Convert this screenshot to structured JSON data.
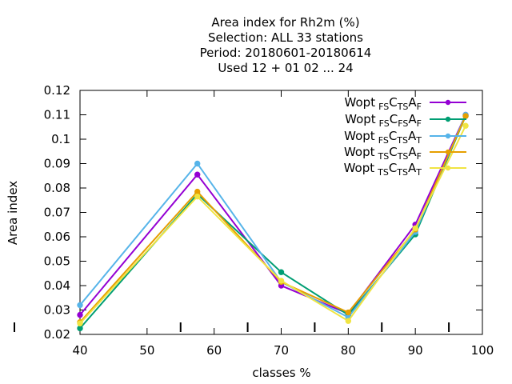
{
  "chart_data": {
    "type": "line",
    "title_lines": [
      "Area index  for Rh2m (%)",
      "Selection: ALL     33 stations",
      "Period: 20180601-20180614",
      "Used  12 + 01 02 ... 24"
    ],
    "xlabel": "classes %",
    "ylabel": "Area index",
    "xlim": [
      40,
      100
    ],
    "ylim": [
      0.02,
      0.12
    ],
    "xticks": [
      40,
      50,
      60,
      70,
      80,
      90,
      100
    ],
    "yticks": [
      0.02,
      0.03,
      0.04,
      0.05,
      0.06,
      0.07,
      0.08,
      0.09,
      0.1,
      0.11,
      0.12
    ],
    "xtick_labels": [
      "40",
      "50",
      "60",
      "70",
      "80",
      "90",
      "100"
    ],
    "ytick_labels": [
      "0.02",
      "0.03",
      "0.04",
      "0.05",
      "0.06",
      "0.07",
      "0.08",
      "0.09",
      "0.1",
      "0.11",
      "0.12"
    ],
    "grid": false,
    "legend_position": "top-right",
    "x": [
      40,
      57.5,
      70,
      80,
      90,
      97.5
    ],
    "series": [
      {
        "name": "Wopt",
        "sub1": "FS",
        "mid": "C",
        "sub2": "TS",
        "end": "A",
        "sub3": "F",
        "color": "#9400d3",
        "values": [
          0.028,
          0.0855,
          0.04,
          0.0285,
          0.065,
          0.11
        ]
      },
      {
        "name": "Wopt",
        "sub1": "FS",
        "mid": "C",
        "sub2": "FS",
        "end": "A",
        "sub3": "F",
        "color": "#009e73",
        "values": [
          0.0225,
          0.0775,
          0.0455,
          0.028,
          0.061,
          0.1095
        ]
      },
      {
        "name": "Wopt",
        "sub1": "FS",
        "mid": "C",
        "sub2": "TS",
        "end": "A",
        "sub3": "T",
        "color": "#56b4e9",
        "values": [
          0.032,
          0.09,
          0.0415,
          0.027,
          0.062,
          0.11
        ]
      },
      {
        "name": "Wopt",
        "sub1": "TS",
        "mid": "C",
        "sub2": "TS",
        "end": "A",
        "sub3": "F",
        "color": "#e69f00",
        "values": [
          0.025,
          0.0785,
          0.0415,
          0.029,
          0.063,
          0.1095
        ]
      },
      {
        "name": "Wopt",
        "sub1": "TS",
        "mid": "C",
        "sub2": "TS",
        "end": "A",
        "sub3": "T",
        "color": "#f0e442",
        "values": [
          0.0245,
          0.0765,
          0.042,
          0.0255,
          0.0635,
          0.1055
        ]
      }
    ]
  }
}
